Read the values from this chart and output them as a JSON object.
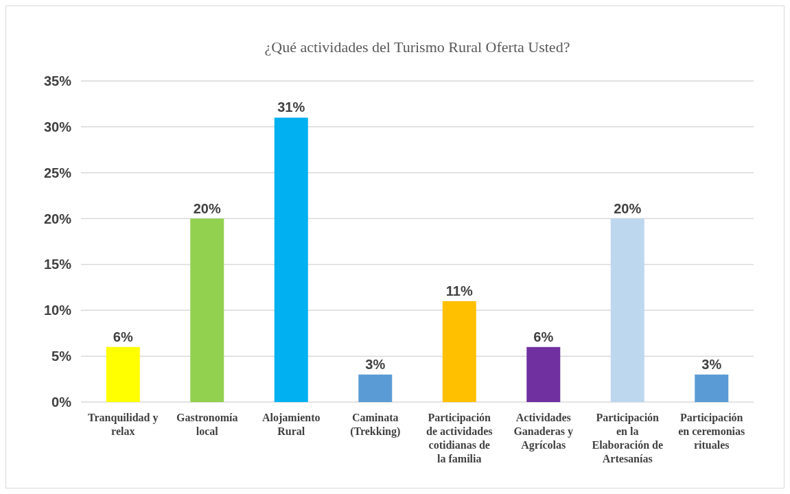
{
  "chart_data": {
    "type": "bar",
    "title": "¿Qué actividades del Turismo Rural  Oferta Usted?",
    "categories": [
      "Tranquilidad y relax",
      "Gastronomía local",
      "Alojamiento Rural",
      "Caminata (Trekking)",
      "Participación de actividades cotidianas de la familia",
      "Actividades Ganaderas y Agrícolas",
      "Participación en la Elaboración de Artesanías",
      "Participación en ceremonias rituales"
    ],
    "values": [
      6,
      20,
      31,
      3,
      11,
      6,
      20,
      3
    ],
    "colors": [
      "#ffff00",
      "#92d050",
      "#00b0f0",
      "#5b9bd5",
      "#ffc000",
      "#7030a0",
      "#bdd7ee",
      "#5b9bd5"
    ],
    "value_labels": [
      "6%",
      "20%",
      "31%",
      "3%",
      "11%",
      "6%",
      "20%",
      "3%"
    ],
    "ylim": [
      0,
      35
    ],
    "yticks": [
      {
        "value": 0,
        "label": "0%"
      },
      {
        "value": 5,
        "label": "5%"
      },
      {
        "value": 10,
        "label": "10%"
      },
      {
        "value": 15,
        "label": "15%"
      },
      {
        "value": 20,
        "label": "20%"
      },
      {
        "value": 25,
        "label": "25%"
      },
      {
        "value": 30,
        "label": "30%"
      },
      {
        "value": 35,
        "label": "35%"
      }
    ],
    "grid": "y"
  }
}
